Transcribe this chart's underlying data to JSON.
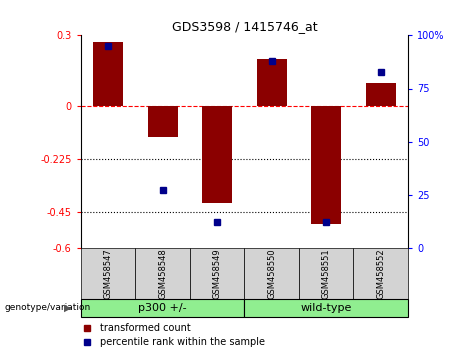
{
  "title": "GDS3598 / 1415746_at",
  "samples": [
    "GSM458547",
    "GSM458548",
    "GSM458549",
    "GSM458550",
    "GSM458551",
    "GSM458552"
  ],
  "red_bars": [
    0.27,
    -0.13,
    -0.41,
    0.2,
    -0.5,
    0.1
  ],
  "blue_squares_pct": [
    95,
    27,
    12,
    88,
    12,
    83
  ],
  "ylim_left": [
    -0.6,
    0.3
  ],
  "ylim_right": [
    0,
    100
  ],
  "yticks_left": [
    0.3,
    0,
    -0.225,
    -0.45,
    -0.6
  ],
  "yticks_right": [
    100,
    75,
    50,
    25,
    0
  ],
  "ytick_labels_left": [
    "0.3",
    "0",
    "-0.225",
    "-0.45",
    "-0.6"
  ],
  "ytick_labels_right": [
    "100%",
    "75",
    "50",
    "25",
    "0"
  ],
  "hlines": [
    0,
    -0.225,
    -0.45
  ],
  "hline_styles": [
    "dashed",
    "dotted",
    "dotted"
  ],
  "hline_colors": [
    "red",
    "black",
    "black"
  ],
  "groups": [
    {
      "label": "p300 +/-",
      "indices": [
        0,
        1,
        2
      ],
      "color": "#90EE90"
    },
    {
      "label": "wild-type",
      "indices": [
        3,
        4,
        5
      ],
      "color": "#90EE90"
    }
  ],
  "group_label_prefix": "genotype/variation",
  "legend_items": [
    {
      "label": "transformed count",
      "color": "#8B0000"
    },
    {
      "label": "percentile rank within the sample",
      "color": "#00008B"
    }
  ],
  "bar_color": "#8B0000",
  "square_color": "#00008B",
  "bar_width": 0.55,
  "background_color": "#ffffff",
  "sample_bg_color": "#d3d3d3",
  "main_axes": [
    0.175,
    0.3,
    0.71,
    0.6
  ],
  "label_axes": [
    0.175,
    0.155,
    0.71,
    0.145
  ],
  "group_axes": [
    0.175,
    0.105,
    0.71,
    0.05
  ],
  "legend_axes": [
    0.175,
    0.01,
    0.71,
    0.09
  ]
}
